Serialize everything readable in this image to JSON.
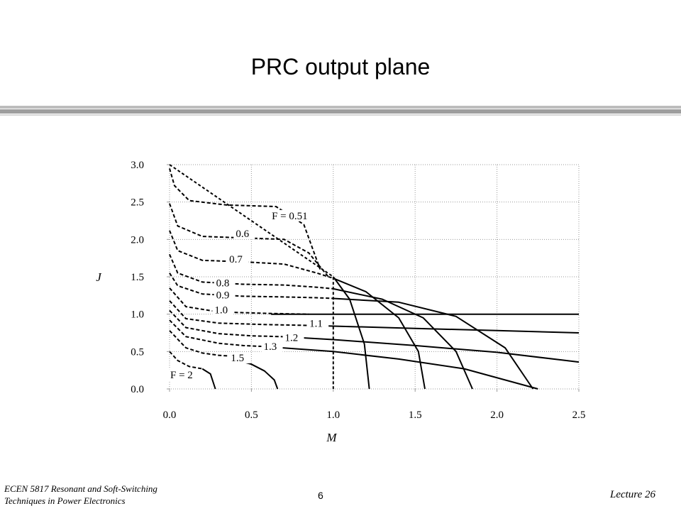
{
  "slide": {
    "title": "PRC output plane",
    "footer_course_line1": "ECEN 5817  Resonant and Soft-Switching",
    "footer_course_line2": "Techniques in Power Electronics",
    "footer_page": "6",
    "footer_lecture": "Lecture 26"
  },
  "chart_data": {
    "type": "line",
    "title": "",
    "xlabel": "M",
    "ylabel": "J",
    "xlim": [
      0,
      2.5
    ],
    "ylim": [
      0,
      3.0
    ],
    "xticks": [
      "0.0",
      "0.5",
      "1.0",
      "1.5",
      "2.0",
      "2.5"
    ],
    "yticks": [
      "0.0",
      "0.5",
      "1.0",
      "1.5",
      "2.0",
      "2.5",
      "3.0"
    ],
    "grid": true,
    "boundary": {
      "style": "dashed",
      "x": [
        0.0,
        1.0,
        1.0
      ],
      "y": [
        3.0,
        1.5,
        0.0
      ]
    },
    "series": [
      {
        "name": "F = 0.51",
        "label_at": [
          0.62,
          2.28
        ],
        "dashed_x": [
          0.0,
          0.03,
          0.12,
          0.35,
          0.65,
          0.82,
          0.92
        ],
        "dashed_y": [
          2.95,
          2.72,
          2.52,
          2.46,
          2.44,
          2.2,
          1.6
        ],
        "solid_x": [],
        "solid_y": []
      },
      {
        "name": "0.6",
        "label_at": [
          0.4,
          2.04
        ],
        "dashed_x": [
          0.0,
          0.05,
          0.2,
          0.45,
          0.7,
          0.85,
          0.97
        ],
        "dashed_y": [
          2.48,
          2.18,
          2.04,
          2.02,
          2.0,
          1.82,
          1.5
        ],
        "solid_x": [
          1.0,
          1.1,
          1.19,
          1.22
        ],
        "solid_y": [
          1.5,
          1.2,
          0.6,
          0.0
        ]
      },
      {
        "name": "0.7",
        "label_at": [
          0.36,
          1.7
        ],
        "dashed_x": [
          0.0,
          0.05,
          0.2,
          0.45,
          0.7,
          0.9,
          1.0
        ],
        "dashed_y": [
          2.12,
          1.85,
          1.72,
          1.7,
          1.67,
          1.55,
          1.48
        ],
        "solid_x": [
          1.0,
          1.2,
          1.4,
          1.52,
          1.56
        ],
        "solid_y": [
          1.48,
          1.3,
          0.95,
          0.5,
          0.0
        ]
      },
      {
        "name": "0.8",
        "label_at": [
          0.28,
          1.38
        ],
        "dashed_x": [
          0.0,
          0.05,
          0.2,
          0.45,
          0.7,
          0.9,
          1.0
        ],
        "dashed_y": [
          1.8,
          1.55,
          1.43,
          1.4,
          1.39,
          1.36,
          1.34
        ],
        "solid_x": [
          1.0,
          1.3,
          1.55,
          1.75,
          1.85
        ],
        "solid_y": [
          1.34,
          1.2,
          0.95,
          0.5,
          0.0
        ]
      },
      {
        "name": "0.9",
        "label_at": [
          0.28,
          1.22
        ],
        "dashed_x": [
          0.0,
          0.05,
          0.2,
          0.45,
          0.7,
          0.9,
          1.0
        ],
        "dashed_y": [
          1.55,
          1.38,
          1.27,
          1.24,
          1.23,
          1.22,
          1.21
        ],
        "solid_x": [
          1.0,
          1.4,
          1.75,
          2.05,
          2.22
        ],
        "solid_y": [
          1.21,
          1.16,
          0.97,
          0.55,
          0.0
        ]
      },
      {
        "name": "1.0",
        "label_at": [
          0.27,
          1.02
        ],
        "dashed_x": [
          0.0,
          0.1,
          0.3,
          0.6,
          0.85
        ],
        "dashed_y": [
          1.35,
          1.1,
          1.03,
          1.01,
          1.0
        ],
        "solid_x": [
          0.62,
          1.0,
          1.5,
          2.0,
          2.5
        ],
        "solid_y": [
          1.0,
          1.0,
          1.0,
          1.0,
          1.0
        ]
      },
      {
        "name": "1.1",
        "label_at": [
          0.85,
          0.84
        ],
        "dashed_x": [
          0.0,
          0.1,
          0.3,
          0.6,
          0.85
        ],
        "dashed_y": [
          1.18,
          0.94,
          0.88,
          0.86,
          0.85
        ],
        "solid_x": [
          0.85,
          1.0,
          1.5,
          2.0,
          2.5
        ],
        "solid_y": [
          0.85,
          0.84,
          0.81,
          0.78,
          0.75
        ]
      },
      {
        "name": "1.2",
        "label_at": [
          0.7,
          0.65
        ],
        "dashed_x": [
          0.0,
          0.1,
          0.3,
          0.5,
          0.68
        ],
        "dashed_y": [
          1.05,
          0.82,
          0.74,
          0.71,
          0.7
        ],
        "solid_x": [
          0.68,
          1.0,
          1.5,
          2.0,
          2.5
        ],
        "solid_y": [
          0.7,
          0.66,
          0.58,
          0.49,
          0.36
        ]
      },
      {
        "name": "1.3",
        "label_at": [
          0.57,
          0.53
        ],
        "dashed_x": [
          0.0,
          0.1,
          0.3,
          0.45,
          0.56
        ],
        "dashed_y": [
          0.92,
          0.7,
          0.61,
          0.58,
          0.57
        ],
        "solid_x": [
          0.56,
          1.0,
          1.4,
          1.8,
          2.25
        ],
        "solid_y": [
          0.57,
          0.5,
          0.4,
          0.27,
          0.0
        ]
      },
      {
        "name": "1.5",
        "label_at": [
          0.37,
          0.38
        ],
        "dashed_x": [
          0.0,
          0.1,
          0.2,
          0.3,
          0.37
        ],
        "dashed_y": [
          0.78,
          0.55,
          0.48,
          0.45,
          0.44
        ],
        "solid_x": [
          0.42,
          0.5,
          0.58,
          0.64,
          0.66
        ],
        "solid_y": [
          0.38,
          0.33,
          0.24,
          0.12,
          0.0
        ]
      },
      {
        "name": "F = 2",
        "label_at": [
          0.0,
          0.15
        ],
        "dashed_x": [
          0.0,
          0.05,
          0.12,
          0.2
        ],
        "dashed_y": [
          0.5,
          0.38,
          0.3,
          0.27
        ],
        "solid_x": [
          0.2,
          0.25,
          0.28
        ],
        "solid_y": [
          0.27,
          0.2,
          0.0
        ]
      }
    ]
  }
}
